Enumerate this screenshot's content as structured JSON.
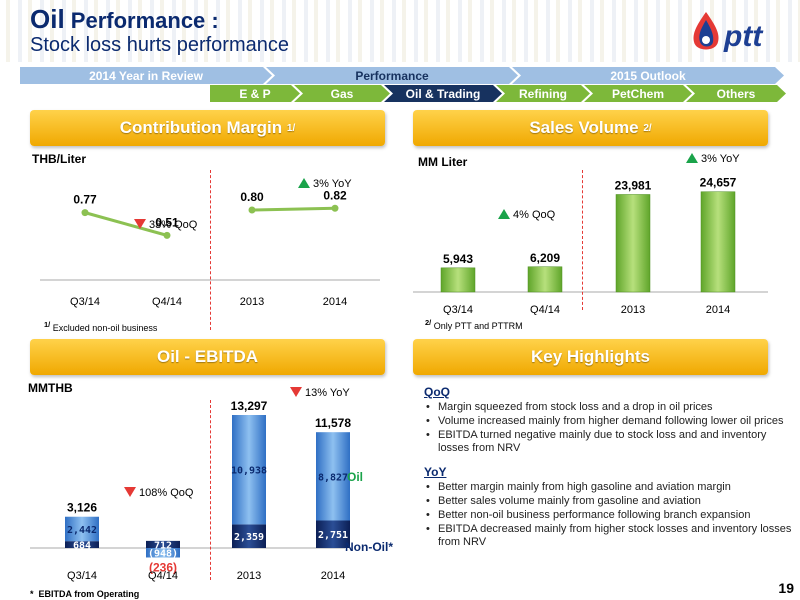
{
  "header": {
    "title_strong": "Oil",
    "title_rest": " Performance :",
    "subtitle": "Stock loss hurts performance",
    "logo_text": "ptt"
  },
  "nav": {
    "row1": [
      "2014 Year in Review",
      "Performance",
      "2015 Outlook"
    ],
    "row2": [
      "E & P",
      "Gas",
      "Oil & Trading",
      "Refining",
      "PetChem",
      "Others"
    ]
  },
  "contribution": {
    "heading": "Contribution Margin",
    "heading_note": "1/",
    "unit": "THB/Liter",
    "qoq": "33% QoQ",
    "yoy": "3% YoY",
    "footnote_mark": "1/",
    "footnote": "Excluded non-oil business"
  },
  "sales": {
    "heading": "Sales Volume",
    "heading_note": "2/",
    "unit": "MM Liter",
    "qoq": "4% QoQ",
    "yoy": "3% YoY",
    "footnote_mark": "2/",
    "footnote": "Only PTT and PTTRM"
  },
  "ebitda": {
    "heading": "Oil - EBITDA",
    "unit": "MMTHB",
    "qoq": "108% QoQ",
    "yoy": "13% YoY",
    "legend_oil": "Oil",
    "legend_nonoil": "Non-Oil*",
    "footnote_mark": "*",
    "footnote": "EBITDA from Operating"
  },
  "highlights": {
    "heading": "Key Highlights",
    "qoq_label": "QoQ",
    "qoq_items": [
      "Margin squeezed from stock loss and a drop in oil prices",
      "Volume increased mainly from higher demand following lower oil prices",
      "EBITDA turned negative mainly due to stock loss and and inventory losses from NRV"
    ],
    "yoy_label": "YoY",
    "yoy_items": [
      "Better margin mainly from high gasoline and aviation margin",
      "Better sales volume mainly from gasoline and aviation",
      "Better non-oil business performance following branch expansion",
      "EBITDA decreased mainly from higher stock losses and inventory losses from NRV"
    ]
  },
  "page_number": "19",
  "colors": {
    "accent_yellow": "#f5b800",
    "navy": "#0b2a6f",
    "green": "#7db83a",
    "red": "#e53935"
  },
  "chart_data": [
    {
      "type": "line",
      "title": "Contribution Margin",
      "ylabel": "THB/Liter",
      "categories": [
        "Q3/14",
        "Q4/14",
        "2013",
        "2014"
      ],
      "series": [
        {
          "values": [
            0.77,
            0.51,
            0.8,
            0.82
          ]
        }
      ],
      "value_labels": [
        "0.77",
        "0.51",
        "0.80",
        "0.82"
      ],
      "segments": [
        [
          0,
          1
        ],
        [
          2,
          3
        ]
      ],
      "ylim": [
        0,
        1.2
      ]
    },
    {
      "type": "bar",
      "title": "Sales Volume",
      "ylabel": "MM Liter",
      "categories": [
        "Q3/14",
        "Q4/14",
        "2013",
        "2014"
      ],
      "values": [
        5943,
        6209,
        23981,
        24657
      ],
      "value_labels": [
        "5,943",
        "6,209",
        "23,981",
        "24,657"
      ],
      "ylim": [
        0,
        30000
      ]
    },
    {
      "type": "bar",
      "title": "Oil - EBITDA",
      "ylabel": "MMTHB",
      "categories": [
        "Q3/14",
        "Q4/14",
        "2013",
        "2014"
      ],
      "series": [
        {
          "name": "Non-Oil*",
          "values": [
            684,
            712,
            2359,
            2751
          ],
          "labels": [
            "684",
            "712",
            "2,359",
            "2,751"
          ]
        },
        {
          "name": "Oil",
          "values": [
            2442,
            -948,
            10938,
            8827
          ],
          "labels": [
            "2,442",
            "(948)",
            "10,938",
            "8,827"
          ]
        }
      ],
      "totals": [
        3126,
        -236,
        13297,
        11578
      ],
      "total_labels": [
        "3,126",
        "(236)",
        "13,297",
        "11,578"
      ],
      "ylim": [
        -1000,
        14000
      ]
    }
  ]
}
